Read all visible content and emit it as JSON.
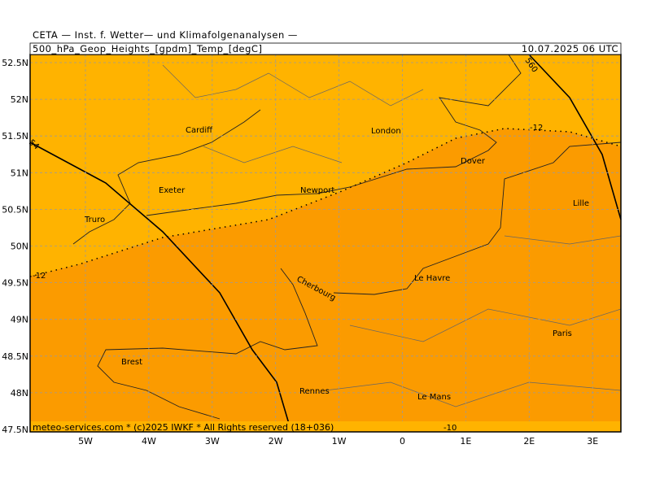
{
  "header": {
    "title": "CETA — Inst. f. Wetter— und Klimafolgenanalysen —",
    "field": "500_hPa_Geop_Heights_[gpdm]_Temp_[degC]",
    "valid": "10.07.2025 06 UTC"
  },
  "lat_labels": [
    "52.5N",
    "52N",
    "51.5N",
    "51N",
    "50.5N",
    "50N",
    "49.5N",
    "49N",
    "48.5N",
    "48N",
    "47.5N"
  ],
  "lon_labels": [
    "5W",
    "4W",
    "3W",
    "2W",
    "1W",
    "0",
    "1E",
    "2E",
    "3E"
  ],
  "cities": [
    "Cardiff",
    "London",
    "Dover",
    "Exeter",
    "Newport",
    "Truro",
    "Lille",
    "Le Havre",
    "Cherbourg",
    "Paris",
    "Brest",
    "Rennes",
    "Le Mans"
  ],
  "contour_labels": [
    "-12",
    "-12",
    "54",
    "560",
    "-10"
  ],
  "footer": "meteo-services.com * (c)2025 IWKF * All Rights reserved (18+036)"
}
